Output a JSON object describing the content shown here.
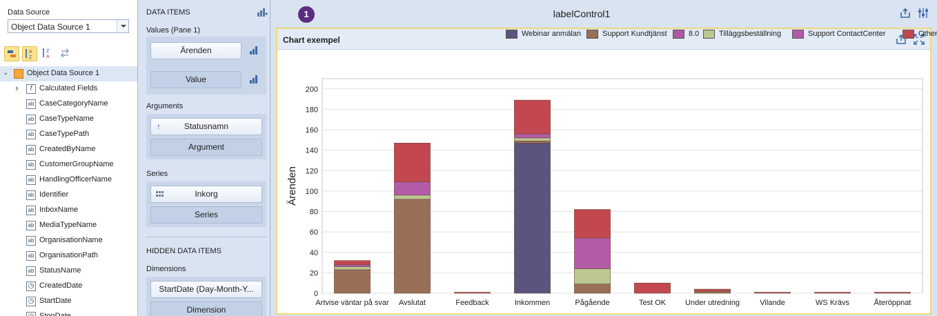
{
  "left_panel": {
    "data_source_label": "Data Source",
    "data_source_value": "Object Data Source 1",
    "tree": [
      {
        "label": "Object Data Source 1",
        "icon": "datasource-icon",
        "level": 0,
        "selected": true,
        "expand": "v"
      },
      {
        "label": "Calculated Fields",
        "icon": "function-icon",
        "level": 1,
        "expand": ">"
      },
      {
        "label": "CaseCategoryName",
        "icon": "string-field-icon",
        "level": 1
      },
      {
        "label": "CaseTypeName",
        "icon": "string-field-icon",
        "level": 1
      },
      {
        "label": "CaseTypePath",
        "icon": "string-field-icon",
        "level": 1
      },
      {
        "label": "CreatedByName",
        "icon": "string-field-icon",
        "level": 1
      },
      {
        "label": "CustomerGroupName",
        "icon": "string-field-icon",
        "level": 1
      },
      {
        "label": "HandlingOfficerName",
        "icon": "string-field-icon",
        "level": 1
      },
      {
        "label": "Identifier",
        "icon": "string-field-icon",
        "level": 1
      },
      {
        "label": "InboxName",
        "icon": "string-field-icon",
        "level": 1
      },
      {
        "label": "MediaTypeName",
        "icon": "string-field-icon",
        "level": 1
      },
      {
        "label": "OrganisationName",
        "icon": "string-field-icon",
        "level": 1
      },
      {
        "label": "OrganisationPath",
        "icon": "string-field-icon",
        "level": 1
      },
      {
        "label": "StatusName",
        "icon": "string-field-icon",
        "level": 1
      },
      {
        "label": "CreatedDate",
        "icon": "date-field-icon",
        "level": 1
      },
      {
        "label": "StartDate",
        "icon": "date-field-icon",
        "level": 1
      },
      {
        "label": "StopDate",
        "icon": "date-field-icon",
        "level": 1
      }
    ],
    "string_icon_glyph": "ab",
    "function_icon_glyph": "f",
    "date_icon_glyph": "◷"
  },
  "mid_panel": {
    "data_items_title": "DATA ITEMS",
    "values_title": "Values (Pane 1)",
    "values": [
      "Ärenden",
      "Value"
    ],
    "arguments_title": "Arguments",
    "arguments": [
      "Statusnamn",
      "Argument"
    ],
    "series_title": "Series",
    "series": [
      "Inkorg",
      "Series"
    ],
    "hidden_title": "HIDDEN DATA ITEMS",
    "dimensions_title": "Dimensions",
    "dimensions": [
      "StartDate (Day-Month-Y...",
      "Dimension"
    ]
  },
  "header": {
    "badge": "1",
    "title": "labelControl1"
  },
  "chart_panel": {
    "title": "Chart exempel"
  },
  "colors": {
    "Webinar anmälan": "#5b547e",
    "Support Kundtjänst": "#9a6f58",
    "8.0": "#b05aa5",
    "Tilläggsbeställning": "#bcc792",
    "Support ContactCenter": "#b35ba8",
    "Others": "#c2474f"
  },
  "chart_data": {
    "type": "bar",
    "stacked": true,
    "ylabel": "Ärenden",
    "xlabel": "",
    "ylim": [
      0,
      210
    ],
    "yticks": [
      0,
      20,
      40,
      60,
      80,
      100,
      120,
      140,
      160,
      180,
      200
    ],
    "grid": true,
    "legend_position": "top-right",
    "categories": [
      "Artvise väntar på svar",
      "Avslutat",
      "Feedback",
      "Inkommen",
      "Pågående",
      "Test OK",
      "Under utredning",
      "Vilande",
      "WS Krävs",
      "Återöppnat"
    ],
    "series": [
      {
        "name": "Webinar anmälan",
        "values": [
          0,
          0,
          0,
          147,
          0,
          0,
          0,
          0,
          0,
          0
        ]
      },
      {
        "name": "Support Kundtjänst",
        "values": [
          23,
          92,
          0,
          2,
          9,
          0,
          2,
          0,
          0,
          0
        ]
      },
      {
        "name": "8.0",
        "values": [
          0,
          0,
          0,
          0,
          0,
          0,
          0,
          0,
          0,
          0
        ]
      },
      {
        "name": "Tilläggsbeställning",
        "values": [
          3,
          4,
          0,
          3,
          15,
          0,
          0,
          0,
          0,
          0
        ]
      },
      {
        "name": "Support ContactCenter",
        "values": [
          2,
          13,
          0,
          4,
          30,
          0,
          0,
          0,
          0,
          0
        ]
      },
      {
        "name": "Others",
        "values": [
          4,
          38,
          1,
          33,
          28,
          10,
          2,
          1,
          1,
          1
        ]
      }
    ]
  }
}
